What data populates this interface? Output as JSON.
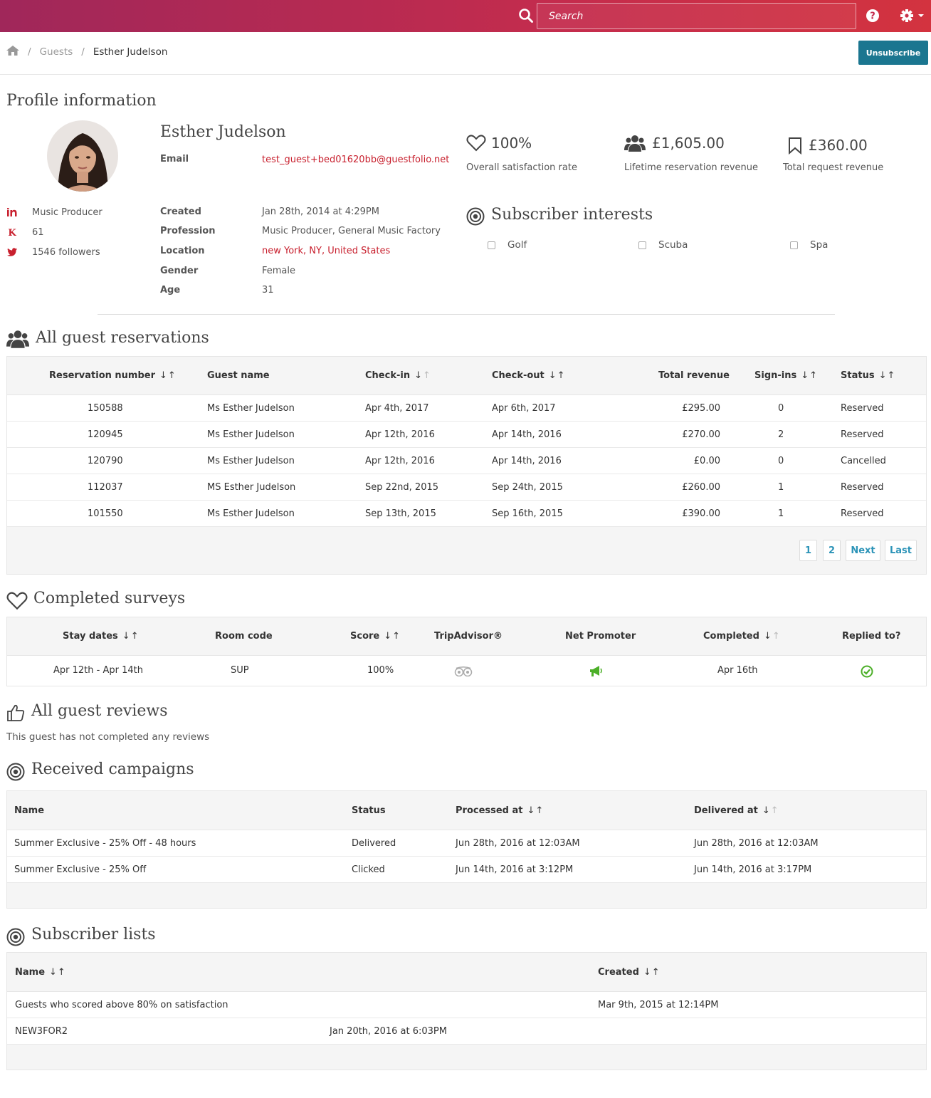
{
  "topbar": {
    "search_placeholder": "Search",
    "search_icon": "search-icon",
    "help_icon": "help-icon",
    "settings_icon": "gear-icon"
  },
  "breadcrumb": {
    "home_icon": "home-icon",
    "items": [
      "Guests",
      "Esther Judelson"
    ]
  },
  "actions": {
    "unsubscribe": "Unsubscribe"
  },
  "profile": {
    "title": "Profile information",
    "name": "Esther Judelson",
    "email_label": "Email",
    "email": "test_guest+bed01620bb@guestfolio.net",
    "social": [
      {
        "icon": "linkedin-icon",
        "text": "Music Producer"
      },
      {
        "icon": "klout-icon",
        "text": "61"
      },
      {
        "icon": "twitter-icon",
        "text": "1546 followers"
      }
    ],
    "fields": [
      {
        "label": "Created",
        "value": "Jan 28th, 2014 at 4:29PM"
      },
      {
        "label": "Profession",
        "value": "Music Producer, General Music Factory"
      },
      {
        "label": "Location",
        "value": "new York, NY, United States"
      },
      {
        "label": "Gender",
        "value": "Female"
      },
      {
        "label": "Age",
        "value": "31"
      }
    ]
  },
  "stats": [
    {
      "icon": "heart-icon",
      "value": "100%",
      "label": "Overall satisfaction rate"
    },
    {
      "icon": "group-icon",
      "value": "£1,605.00",
      "label": "Lifetime reservation revenue"
    },
    {
      "icon": "bookmark-icon",
      "value": "£360.00",
      "label": "Total request revenue"
    }
  ],
  "interests": {
    "title": "Subscriber interests",
    "items": [
      "Golf",
      "Scuba",
      "Spa"
    ]
  },
  "reservations": {
    "title": "All guest reservations",
    "columns": [
      "Reservation number",
      "Guest name",
      "Check-in",
      "Check-out",
      "Total revenue",
      "Sign-ins",
      "Status"
    ],
    "rows": [
      [
        "150588",
        "Ms Esther Judelson",
        "Apr 4th, 2017",
        "Apr 6th, 2017",
        "£295.00",
        "0",
        "Reserved"
      ],
      [
        "120945",
        "Ms Esther Judelson",
        "Apr 12th, 2016",
        "Apr 14th, 2016",
        "£270.00",
        "2",
        "Reserved"
      ],
      [
        "120790",
        "Ms Esther Judelson",
        "Apr 12th, 2016",
        "Apr 14th, 2016",
        "£0.00",
        "0",
        "Cancelled"
      ],
      [
        "112037",
        "MS Esther Judelson",
        "Sep 22nd, 2015",
        "Sep 24th, 2015",
        "£260.00",
        "1",
        "Reserved"
      ],
      [
        "101550",
        "Ms Esther Judelson",
        "Sep 13th, 2015",
        "Sep 16th, 2015",
        "£390.00",
        "1",
        "Reserved"
      ]
    ],
    "pagination": [
      "1",
      "2",
      "Next",
      "Last"
    ]
  },
  "surveys": {
    "title": "Completed surveys",
    "columns": [
      "Stay dates",
      "Room code",
      "Score",
      "TripAdvisor®",
      "Net Promoter",
      "Completed",
      "Replied to?"
    ],
    "rows": [
      {
        "stay": "Apr 12th - Apr 14th",
        "room": "SUP",
        "score": "100%",
        "tripadvisor_icon": "tripadvisor-icon",
        "net_promoter_icon": "megaphone-icon",
        "completed": "Apr 16th",
        "replied_icon": "check-circle-icon"
      }
    ]
  },
  "reviews": {
    "title": "All guest reviews",
    "empty": "This guest has not completed any reviews"
  },
  "campaigns": {
    "title": "Received campaigns",
    "columns": [
      "Name",
      "Status",
      "Processed at",
      "Delivered at"
    ],
    "rows": [
      [
        "Summer Exclusive - 25% Off - 48 hours",
        "Delivered",
        "Jun 28th, 2016 at 12:03AM",
        "Jun 28th, 2016 at 12:03AM"
      ],
      [
        "Summer Exclusive - 25% Off",
        "Clicked",
        "Jun 14th, 2016 at 3:12PM",
        "Jun 14th, 2016 at 3:17PM"
      ]
    ]
  },
  "lists": {
    "title": "Subscriber lists",
    "columns": [
      "Name",
      "Created"
    ],
    "rows": [
      [
        "Guests who scored above 80% on satisfaction",
        "Mar 9th, 2015 at 12:14PM"
      ],
      [
        "NEW3FOR2",
        "Jan 20th, 2016 at 6:03PM"
      ]
    ]
  },
  "colors": {
    "brand_start": "#a0275a",
    "brand_end": "#d3333f",
    "accent": "#1b7690",
    "link": "#2d94b8",
    "alert_link": "#c8202e",
    "success": "#4caf28"
  }
}
